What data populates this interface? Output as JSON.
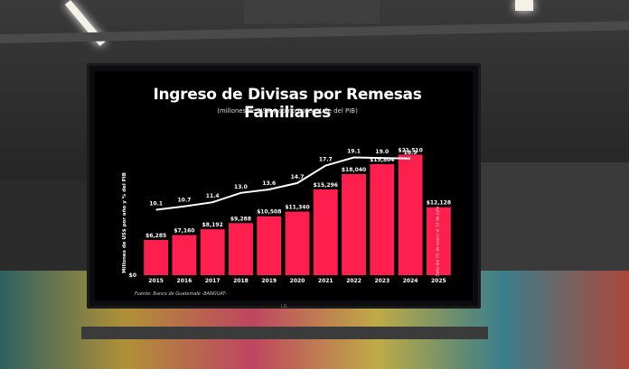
{
  "colors": {
    "bar": "#ff1f4f",
    "line": "#ffffff",
    "background": "#000000"
  },
  "chart_data": {
    "type": "bar",
    "title": "Ingreso de Divisas por Remesas Familiares",
    "subtitle": "(millones de US$ y como porcentaje del PIB)",
    "ylabel": "Millones de US$ por año y % del PIB",
    "source": "Fuente: Banco de Guatemale -BANGUAT-",
    "categories": [
      "2015",
      "2016",
      "2017",
      "2018",
      "2019",
      "2020",
      "2021",
      "2022",
      "2023",
      "2024",
      "2025"
    ],
    "bar_labels": [
      "$6,285",
      "$7,160",
      "$8,192",
      "$9,288",
      "$10,508",
      "$11,340",
      "$15,296",
      "$18,040",
      "$19,804",
      "$21,510",
      "$12,128"
    ],
    "values": [
      6285,
      7160,
      8192,
      9288,
      10508,
      11340,
      15296,
      18040,
      19804,
      21510,
      12128
    ],
    "line_series": {
      "values": [
        10.1,
        10.7,
        11.4,
        13.0,
        13.6,
        14.7,
        17.7,
        19.1,
        19.0,
        18.9
      ],
      "labels": [
        "10.1",
        "10.7",
        "11.4",
        "13.0",
        "13.6",
        "14.7",
        "17.7",
        "19.1",
        "19.0",
        "18.9"
      ]
    },
    "annotation": "Data del 01 de enero al 12 de julio",
    "yticks": [
      "$0"
    ],
    "ylim": [
      0,
      23500
    ],
    "grid": false
  },
  "tv_brand": "LG"
}
